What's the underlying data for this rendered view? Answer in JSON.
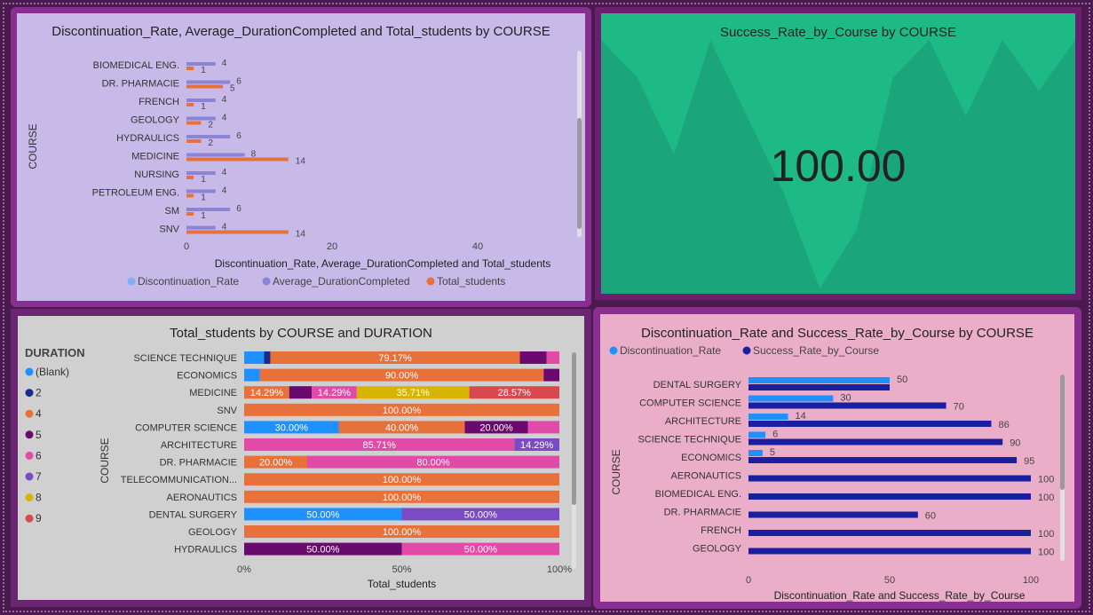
{
  "colors": {
    "discontinuation": "#1e90ff",
    "avg_duration": "#8a83d6",
    "total_students": "#e8703a",
    "success_rate": "#1a1fa0",
    "duration_blank": "#1e90ff",
    "duration_2": "#1a2a8a",
    "duration_4": "#e8703a",
    "duration_5": "#6b0a6e",
    "duration_6": "#e24aa8",
    "duration_7": "#7a4bc4",
    "duration_8": "#d6b400",
    "duration_9": "#d9474f"
  },
  "panel1": {
    "title": "Discontinuation_Rate, Average_DurationCompleted and Total_students by COURSE",
    "chart_data": {
      "type": "bar",
      "orientation": "horizontal",
      "categories": [
        "BIOMEDICAL ENG.",
        "DR. PHARMACIE",
        "FRENCH",
        "GEOLOGY",
        "HYDRAULICS",
        "MEDICINE",
        "NURSING",
        "PETROLEUM ENG.",
        "SM",
        "SNV"
      ],
      "series": [
        {
          "name": "Discontinuation_Rate",
          "values": [
            0,
            0,
            0,
            0,
            0,
            0,
            0,
            0,
            0,
            0
          ]
        },
        {
          "name": "Average_DurationCompleted",
          "values": [
            4,
            6,
            4,
            4,
            6,
            8,
            4,
            4,
            6,
            4
          ]
        },
        {
          "name": "Total_students",
          "values": [
            1,
            5,
            1,
            2,
            2,
            14,
            1,
            1,
            1,
            14
          ]
        }
      ],
      "value_labels": {
        "Average_DurationCompleted": [
          "4",
          "6",
          "4",
          "4",
          "6",
          "8",
          "4",
          "4",
          "6",
          "4"
        ],
        "Total_students": [
          "1",
          "5",
          "1",
          "2",
          "2",
          "14",
          "1",
          "1",
          "1",
          "14"
        ]
      },
      "xlabel": "Discontinuation_Rate, Average_DurationCompleted and Total_students",
      "ylabel": "COURSE",
      "xticks": [
        "0",
        "20",
        "40"
      ],
      "xlim": [
        0,
        53
      ],
      "legend": [
        "Discontinuation_Rate",
        "Average_DurationCompleted",
        "Total_students"
      ],
      "legend_position": "bottom"
    }
  },
  "panel2": {
    "title": "Success_Rate_by_Course by COURSE",
    "value": "100.00",
    "chart_data": {
      "type": "area",
      "values": [
        100,
        85,
        55,
        100,
        70,
        40,
        2,
        25,
        85,
        100,
        70,
        100,
        80,
        100
      ]
    }
  },
  "panel3": {
    "title": "Total_students by COURSE and DURATION",
    "legend_title": "DURATION",
    "chart_data": {
      "type": "bar",
      "orientation": "horizontal",
      "stacked_percent": true,
      "categories": [
        "SCIENCE TECHNIQUE",
        "ECONOMICS",
        "MEDICINE",
        "SNV",
        "COMPUTER SCIENCE",
        "ARCHITECTURE",
        "DR. PHARMACIE",
        "TELECOMMUNICATION...",
        "AERONAUTICS",
        "DENTAL SURGERY",
        "GEOLOGY",
        "HYDRAULICS"
      ],
      "series": [
        {
          "name": "(Blank)",
          "values": [
            6.3,
            5,
            0,
            0,
            30,
            0,
            0,
            0,
            0,
            50,
            0,
            0
          ]
        },
        {
          "name": "2",
          "values": [
            2,
            0,
            0,
            0,
            0,
            0,
            0,
            0,
            0,
            0,
            0,
            0
          ]
        },
        {
          "name": "4",
          "values": [
            79.17,
            90,
            14.29,
            100,
            40,
            0,
            20,
            100,
            100,
            0,
            100,
            0
          ]
        },
        {
          "name": "5",
          "values": [
            8.5,
            5,
            7.14,
            0,
            20,
            0,
            0,
            0,
            0,
            0,
            0,
            50
          ]
        },
        {
          "name": "6",
          "values": [
            4.03,
            0,
            14.29,
            0,
            10,
            85.71,
            80,
            0,
            0,
            0,
            0,
            50
          ]
        },
        {
          "name": "7",
          "values": [
            0,
            0,
            0,
            0,
            0,
            14.29,
            0,
            0,
            0,
            50,
            0,
            0
          ]
        },
        {
          "name": "8",
          "values": [
            0,
            0,
            35.71,
            0,
            0,
            0,
            0,
            0,
            0,
            0,
            0,
            0
          ]
        },
        {
          "name": "9",
          "values": [
            0,
            0,
            28.57,
            0,
            0,
            0,
            0,
            0,
            0,
            0,
            0,
            0
          ]
        }
      ],
      "segment_labels": [
        [
          "",
          "",
          "79.17%",
          "",
          "",
          "",
          "",
          ""
        ],
        [
          "",
          "",
          "90.00%",
          "",
          "",
          "",
          "",
          ""
        ],
        [
          "",
          "",
          "14.29%",
          "",
          "14.29%",
          "",
          "35.71%",
          "28.57%"
        ],
        [
          "",
          "",
          "100.00%",
          "",
          "",
          "",
          "",
          ""
        ],
        [
          "30.00%",
          "",
          "40.00%",
          "20.00%",
          "",
          "",
          "",
          ""
        ],
        [
          "",
          "",
          "",
          "",
          "85.71%",
          "14.29%",
          "",
          ""
        ],
        [
          "",
          "",
          "20.00%",
          "",
          "80.00%",
          "",
          "",
          ""
        ],
        [
          "",
          "",
          "100.00%",
          "",
          "",
          "",
          "",
          ""
        ],
        [
          "",
          "",
          "100.00%",
          "",
          "",
          "",
          "",
          ""
        ],
        [
          "50.00%",
          "",
          "",
          "",
          "",
          "50.00%",
          "",
          ""
        ],
        [
          "",
          "",
          "100.00%",
          "",
          "",
          "",
          "",
          ""
        ],
        [
          "",
          "",
          "",
          "50.00%",
          "50.00%",
          "",
          "",
          ""
        ]
      ],
      "xlabel": "Total_students",
      "ylabel": "COURSE",
      "xticks": [
        "0%",
        "50%",
        "100%"
      ],
      "legend_position": "left"
    }
  },
  "panel4": {
    "title": "Discontinuation_Rate and Success_Rate_by_Course by COURSE",
    "chart_data": {
      "type": "bar",
      "orientation": "horizontal",
      "categories": [
        "DENTAL SURGERY",
        "COMPUTER SCIENCE",
        "ARCHITECTURE",
        "SCIENCE TECHNIQUE",
        "ECONOMICS",
        "AERONAUTICS",
        "BIOMEDICAL ENG.",
        "DR. PHARMACIE",
        "FRENCH",
        "GEOLOGY"
      ],
      "series": [
        {
          "name": "Discontinuation_Rate",
          "values": [
            50,
            30,
            14,
            6,
            5,
            0,
            0,
            0,
            0,
            0
          ],
          "labels": [
            "50",
            "30",
            "14",
            "6",
            "5",
            "",
            "",
            "",
            "",
            ""
          ]
        },
        {
          "name": "Success_Rate_by_Course",
          "values": [
            50,
            70,
            86,
            90,
            95,
            100,
            100,
            60,
            100,
            100
          ],
          "labels": [
            "",
            "70",
            "86",
            "90",
            "95",
            "100",
            "100",
            "60",
            "100",
            "100"
          ]
        }
      ],
      "xlabel": "Discontinuation_Rate and Success_Rate_by_Course",
      "ylabel": "COURSE",
      "xticks": [
        "0",
        "50",
        "100"
      ],
      "xlim": [
        0,
        100
      ],
      "legend": [
        "Discontinuation_Rate",
        "Success_Rate_by_Course"
      ],
      "legend_position": "top-left"
    }
  }
}
